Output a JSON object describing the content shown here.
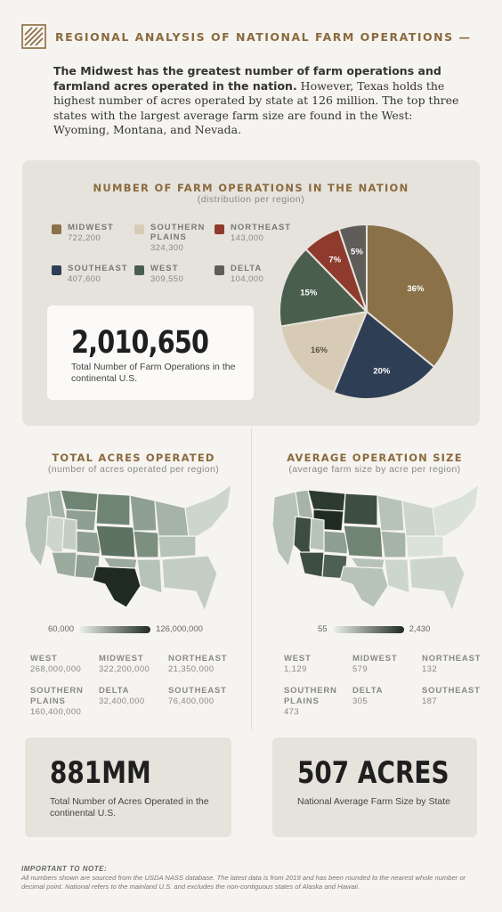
{
  "header": {
    "title": "REGIONAL ANALYSIS OF NATIONAL FARM OPERATIONS —",
    "logo_icon": "wheat-field-stripes-icon"
  },
  "intro": {
    "bold": "The Midwest has the greatest number of farm operations and farmland acres operated in the nation.",
    "rest": " However, Texas holds the highest number of acres operated by state at 126 million. The top three states with the largest average farm size are found in the West: Wyoming, Montana, and Nevada."
  },
  "operations": {
    "title": "NUMBER OF FARM OPERATIONS IN THE NATION",
    "subtitle": "(distribution per region)",
    "total": "2,010,650",
    "total_label": "Total Number of Farm Operations in the continental U.S."
  },
  "acres": {
    "title": "TOTAL ACRES OPERATED",
    "subtitle": "(number of acres operated per region)",
    "scale_min": "60,000",
    "scale_max": "126,000,000",
    "stats": [
      {
        "name": "WEST",
        "value": "268,000,000"
      },
      {
        "name": "MIDWEST",
        "value": "322,200,000"
      },
      {
        "name": "NORTHEAST",
        "value": "21,350,000"
      },
      {
        "name": "SOUTHERN\nPLAINS",
        "value": "160,400,000"
      },
      {
        "name": "DELTA",
        "value": "32,400,000"
      },
      {
        "name": "SOUTHEAST",
        "value": "76,400,000"
      }
    ],
    "card_value": "881MM",
    "card_label": "Total Number of Acres Operated in the continental U.S."
  },
  "avg_size": {
    "title": "AVERAGE OPERATION SIZE",
    "subtitle": "(average farm size by acre per region)",
    "scale_min": "55",
    "scale_max": "2,430",
    "stats": [
      {
        "name": "WEST",
        "value": "1,129"
      },
      {
        "name": "MIDWEST",
        "value": "579"
      },
      {
        "name": "NORTHEAST",
        "value": "132"
      },
      {
        "name": "SOUTHERN\nPLAINS",
        "value": "473"
      },
      {
        "name": "DELTA",
        "value": "305"
      },
      {
        "name": "SOUTHEAST",
        "value": "187"
      }
    ],
    "card_value": "507 ACRES",
    "card_label": "National Average Farm Size by State"
  },
  "note": {
    "heading": "IMPORTANT TO NOTE:",
    "text": "All numbers shown are sourced from the USDA NASS database. The latest data is from 2019 and has been rounded to the nearest whole number or decimal point. National refers to the mainland U.S. and excludes the non-contiguous states of Alaska and Hawaii."
  },
  "colors": {
    "accent": "#8a6a3e",
    "midwest": "#8b7148",
    "southern_plains": "#d8cbb5",
    "northeast": "#8e3a2c",
    "southeast": "#2e3e55",
    "west": "#4a5e4e",
    "delta": "#5e5d59",
    "map_light": "#c5d0c6",
    "map_dark": "#1f2b22"
  },
  "chart_data": [
    {
      "type": "pie",
      "title": "NUMBER OF FARM OPERATIONS IN THE NATION",
      "subtitle": "(distribution per region)",
      "legend": "left",
      "slices": [
        {
          "name": "MIDWEST",
          "value": 722200,
          "label": "36%",
          "legend_value": "722,200",
          "color": "#8b7148"
        },
        {
          "name": "SOUTHEAST",
          "value": 407600,
          "label": "20%",
          "legend_value": "407,600",
          "color": "#2e3e55"
        },
        {
          "name": "SOUTHERN\nPLAINS",
          "value": 324300,
          "label": "16%",
          "legend_value": "324,300",
          "color": "#d8cbb5"
        },
        {
          "name": "WEST",
          "value": 309550,
          "label": "15%",
          "legend_value": "309,550",
          "color": "#4a5e4e"
        },
        {
          "name": "NORTHEAST",
          "value": 143000,
          "label": "7%",
          "legend_value": "143,000",
          "color": "#8e3a2c"
        },
        {
          "name": "DELTA",
          "value": 104000,
          "label": "5%",
          "legend_value": "104,000",
          "color": "#5e5d59"
        }
      ]
    },
    {
      "type": "heatmap",
      "title": "TOTAL ACRES OPERATED",
      "subtitle": "(number of acres operated per region)",
      "scale": [
        60000,
        126000000
      ],
      "peak_state": "Texas"
    },
    {
      "type": "heatmap",
      "title": "AVERAGE OPERATION SIZE",
      "subtitle": "(average farm size by acre per region)",
      "scale": [
        55,
        2430
      ],
      "top_states": [
        "Wyoming",
        "Montana",
        "Nevada"
      ]
    }
  ]
}
